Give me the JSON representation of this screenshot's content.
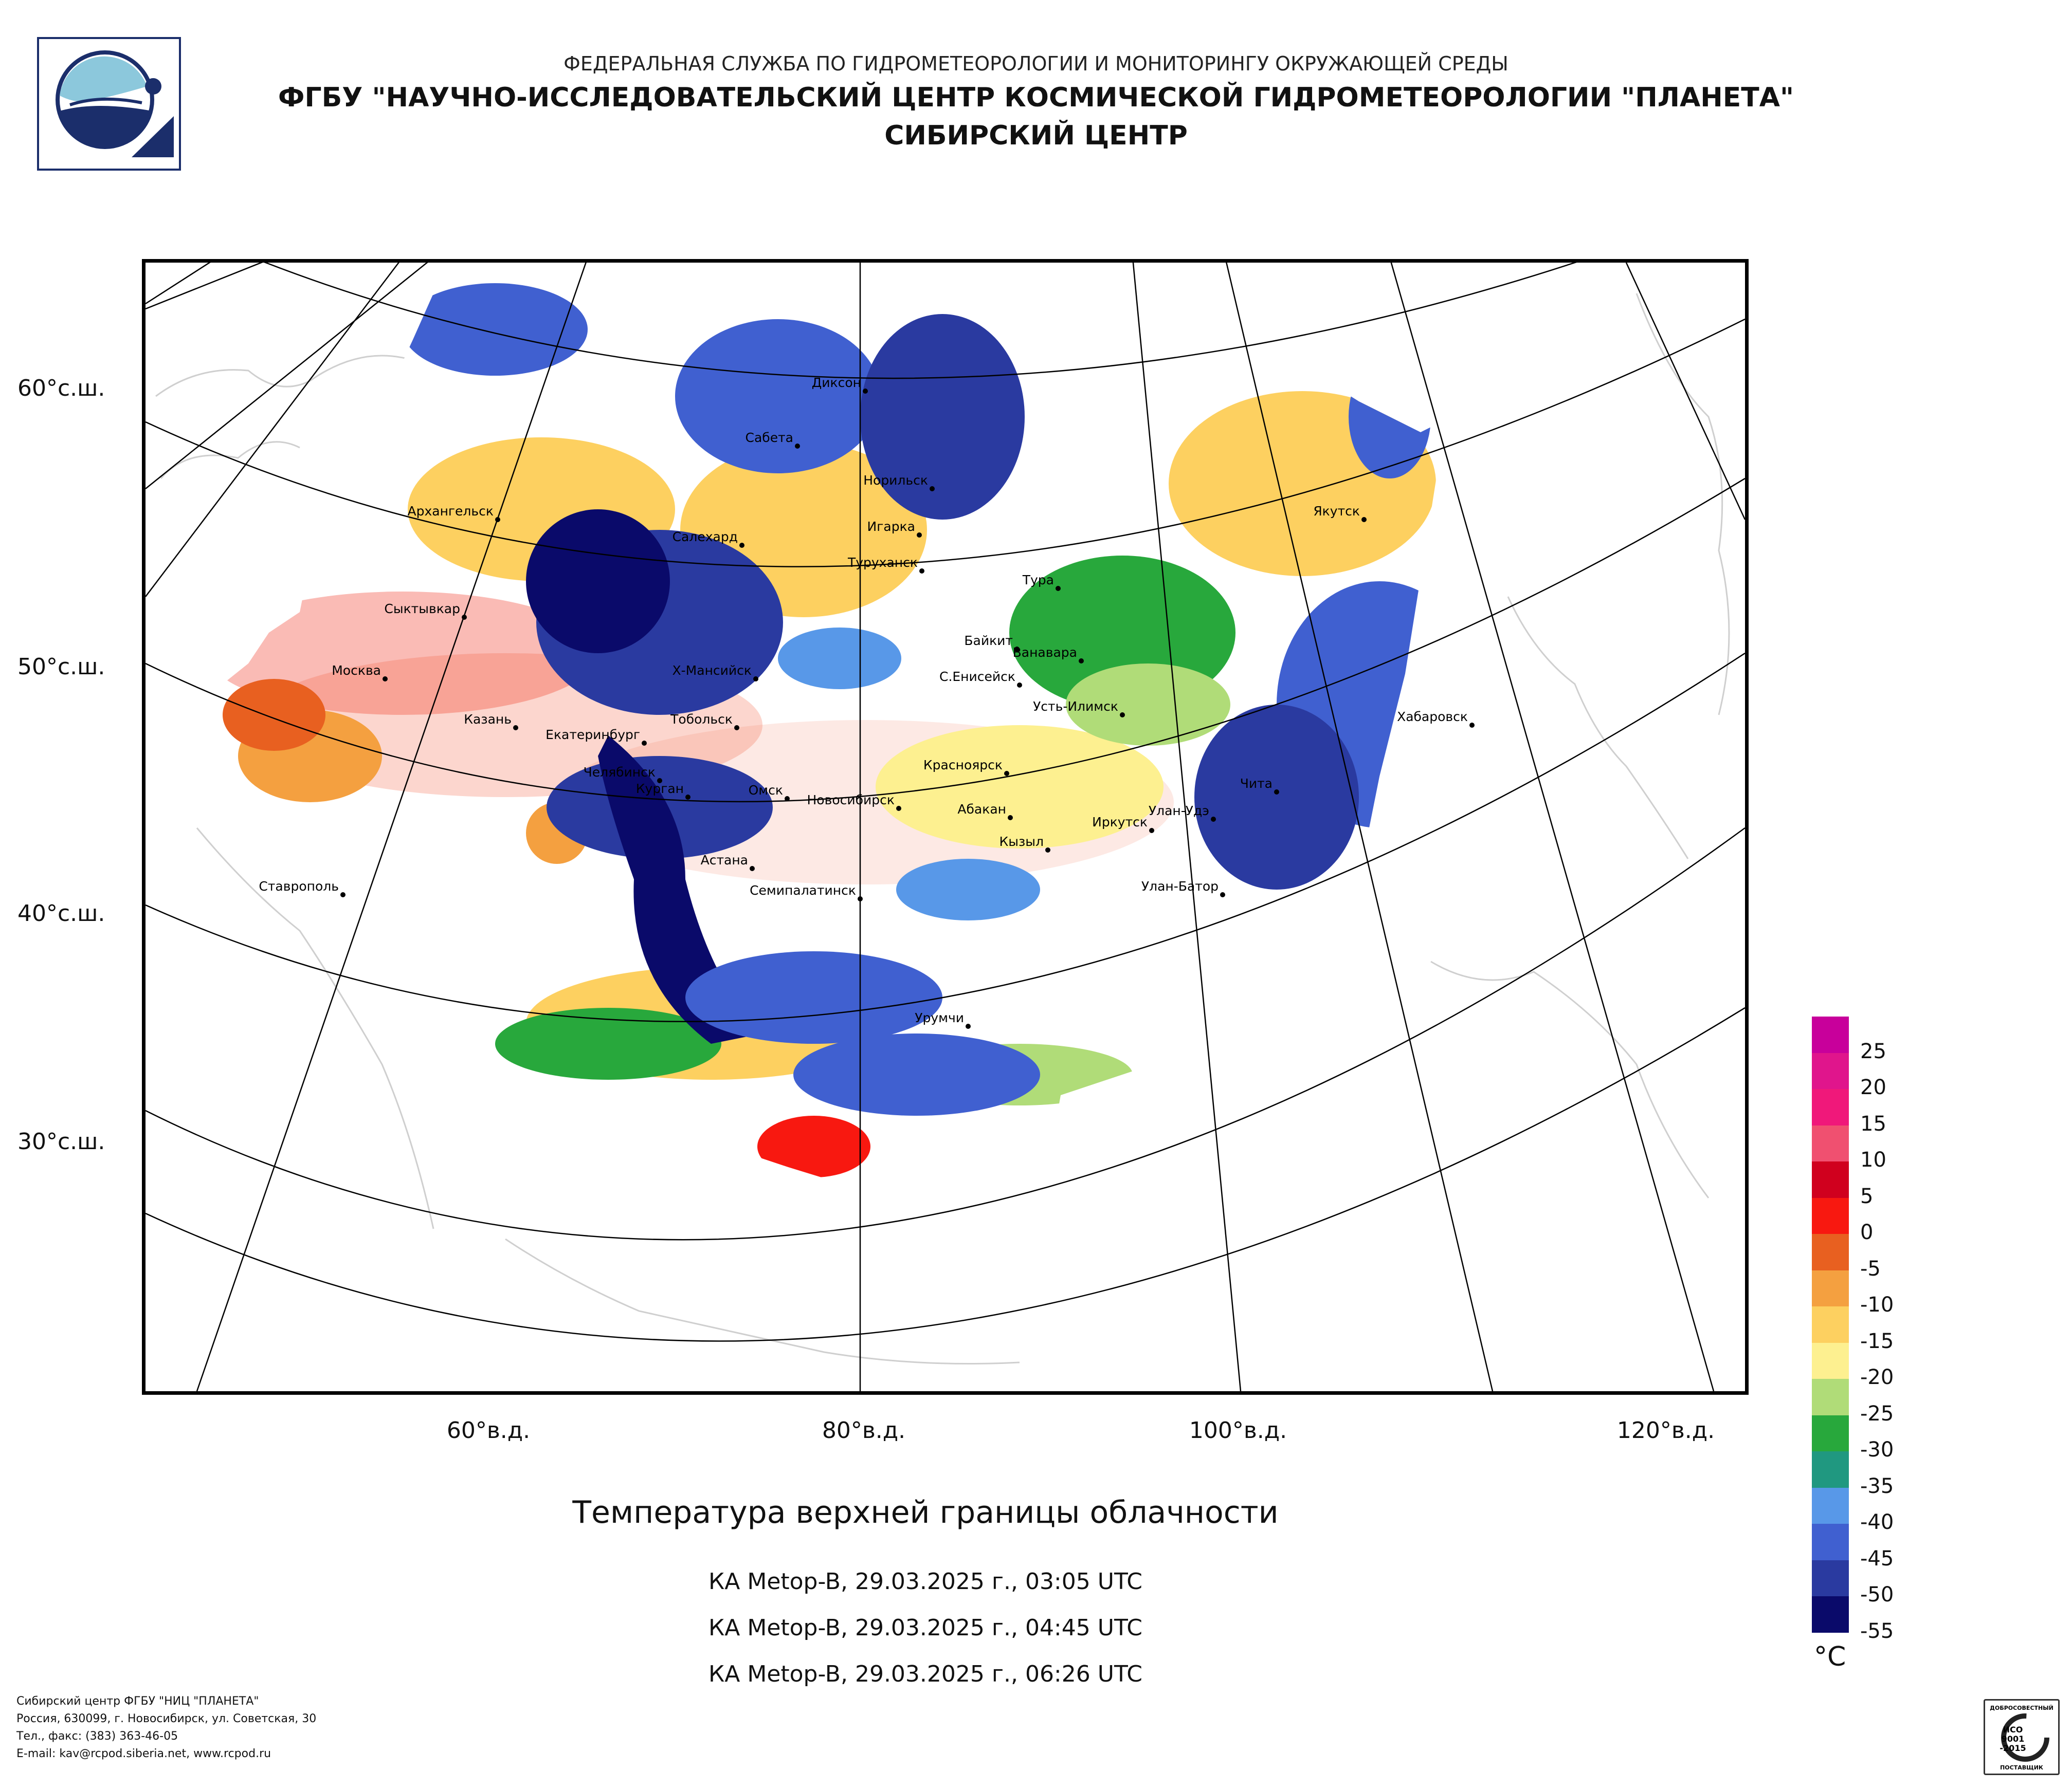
{
  "header": {
    "line1": "ФЕДЕРАЛЬНАЯ СЛУЖБА ПО ГИДРОМЕТЕОРОЛОГИИ И МОНИТОРИНГУ ОКРУЖАЮЩЕЙ СРЕДЫ",
    "line2": "ФГБУ \"НАУЧНО-ИССЛЕДОВАТЕЛЬСКИЙ ЦЕНТР КОСМИЧЕСКОЙ ГИДРОМЕТЕОРОЛОГИИ \"ПЛАНЕТА\"",
    "line3": "СИБИРСКИЙ ЦЕНТР"
  },
  "map": {
    "lat_labels": [
      "60°с.ш.",
      "50°с.ш.",
      "40°с.ш.",
      "30°с.ш."
    ],
    "lon_labels": [
      "60°в.д.",
      "80°в.д.",
      "100°в.д.",
      "120°в.д."
    ],
    "cities": [
      "Диксон",
      "Сабета",
      "Норильск",
      "Архангельск",
      "Салехард",
      "Игарка",
      "Якутск",
      "Туруханск",
      "Тура",
      "Сыктывкар",
      "Байкит",
      "Ванавара",
      "Москва",
      "Х-Мансийск",
      "С.Енисейск",
      "Усть-Илимск",
      "Хабаровск",
      "Казань",
      "Тобольск",
      "Екатеринбург",
      "Красноярск",
      "Чита",
      "Челябинск",
      "Курган",
      "Омск",
      "Новосибирск",
      "Абакан",
      "Улан-Удэ",
      "Иркутск",
      "Кызыл",
      "Астана",
      "Ставрополь",
      "Семипалатинск",
      "Улан-Батор",
      "Урумчи"
    ]
  },
  "title": "Температура верхней границы облачности",
  "passes": [
    "КА Metop-B, 29.03.2025 г., 03:05 UTC",
    "КА Metop-B, 29.03.2025 г., 04:45 UTC",
    "КА Metop-B, 29.03.2025 г., 06:26 UTC"
  ],
  "legend": {
    "unit": "°C",
    "labels": [
      "25",
      "20",
      "15",
      "10",
      "5",
      "0",
      "-5",
      "-10",
      "-15",
      "-20",
      "-25",
      "-30",
      "-35",
      "-40",
      "-45",
      "-50",
      "-55"
    ],
    "colors": [
      "#c8009b",
      "#e0158c",
      "#f0187a",
      "#f05070",
      "#d0001e",
      "#f81810",
      "#e86020",
      "#f4a040",
      "#fdd060",
      "#fdf090",
      "#b0dc78",
      "#28a83c",
      "#209880",
      "#5898e8",
      "#4060d0",
      "#2a3aa0",
      "#0a0a6a"
    ]
  },
  "footer": {
    "line1": "Сибирский центр ФГБУ \"НИЦ \"ПЛАНЕТА\"",
    "line2": "Россия, 630099, г. Новосибирск, ул. Советская, 30",
    "line3": "Тел., факс: (383) 363-46-05",
    "line4": "E-mail: kav@rcpod.siberia.net, www.rcpod.ru"
  },
  "badge": {
    "top": "ДОБРОСОВЕСТНЫЙ",
    "l1": "ИСО",
    "l2": "9001",
    "l3": "-2015",
    "bottom": "ПОСТАВЩИК"
  }
}
